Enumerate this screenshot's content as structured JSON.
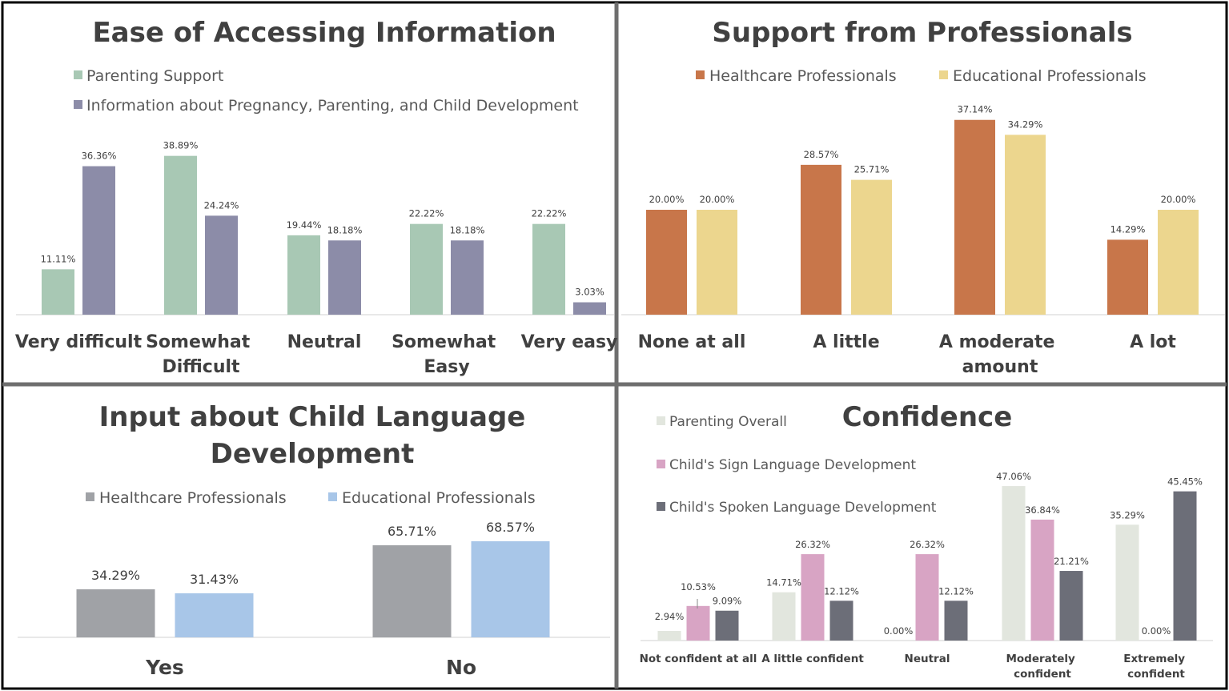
{
  "chart_data": [
    {
      "type": "bar",
      "title": "Ease of Accessing Information",
      "categories": [
        "Very difficult",
        "Somewhat Difficult",
        "Neutral",
        "Somewhat Easy",
        "Very easy"
      ],
      "series": [
        {
          "name": "Parenting Support",
          "color": "#a8c8b4",
          "values": [
            11.11,
            38.89,
            19.44,
            22.22,
            22.22
          ],
          "labels": [
            "11.11%",
            "38.89%",
            "19.44%",
            "22.22%",
            "22.22%"
          ]
        },
        {
          "name": "Information about Pregnancy, Parenting, and Child Development",
          "color": "#8c8ca8",
          "values": [
            36.36,
            24.24,
            18.18,
            18.18,
            3.03
          ],
          "labels": [
            "36.36%",
            "24.24%",
            "18.18%",
            "18.18%",
            "3.03%"
          ]
        }
      ],
      "legend": "top-left",
      "ylim": [
        0,
        40
      ]
    },
    {
      "type": "bar",
      "title": "Support from Professionals",
      "categories": [
        "None at all",
        "A little",
        "A moderate amount",
        "A lot"
      ],
      "series": [
        {
          "name": "Healthcare Professionals",
          "color": "#c8764a",
          "values": [
            20.0,
            28.57,
            37.14,
            14.29
          ],
          "labels": [
            "20.00%",
            "28.57%",
            "37.14%",
            "14.29%"
          ]
        },
        {
          "name": "Educational Professionals",
          "color": "#ecd68e",
          "values": [
            20.0,
            25.71,
            34.29,
            20.0
          ],
          "labels": [
            "20.00%",
            "25.71%",
            "34.29%",
            "20.00%"
          ]
        }
      ],
      "legend": "top",
      "ylim": [
        0,
        40
      ]
    },
    {
      "type": "bar",
      "title": "Input about Child Language Development",
      "title_lines": [
        "Input about Child Language",
        "Development"
      ],
      "categories": [
        "Yes",
        "No"
      ],
      "series": [
        {
          "name": "Healthcare Professionals",
          "color": "#a0a2a6",
          "values": [
            34.29,
            65.71
          ],
          "labels": [
            "34.29%",
            "65.71%"
          ]
        },
        {
          "name": "Educational Professionals",
          "color": "#a8c6e8",
          "values": [
            31.43,
            68.57
          ],
          "labels": [
            "31.43%",
            "68.57%"
          ]
        }
      ],
      "legend": "top",
      "ylim": [
        0,
        80
      ]
    },
    {
      "type": "bar",
      "title": "Confidence",
      "categories": [
        "Not confident at all",
        "A little confident",
        "Neutral",
        "Moderately confident",
        "Extremely confident"
      ],
      "series": [
        {
          "name": "Parenting Overall",
          "color": "#e2e6de",
          "values": [
            2.94,
            14.71,
            0.0,
            47.06,
            35.29
          ],
          "labels": [
            "2.94%",
            "14.71%",
            "0.00%",
            "47.06%",
            "35.29%"
          ]
        },
        {
          "name": "Child's Sign Language Development",
          "color": "#d8a4c4",
          "values": [
            10.53,
            26.32,
            26.32,
            36.84,
            0.0
          ],
          "labels": [
            "10.53%",
            "26.32%",
            "26.32%",
            "36.84%",
            "0.00%"
          ]
        },
        {
          "name": "Child's Spoken Language Development",
          "color": "#6c6e78",
          "values": [
            9.09,
            12.12,
            12.12,
            21.21,
            45.45
          ],
          "labels": [
            "9.09%",
            "12.12%",
            "12.12%",
            "21.21%",
            "45.45%"
          ]
        }
      ],
      "legend": "top-left",
      "ylim": [
        0,
        50
      ]
    }
  ]
}
